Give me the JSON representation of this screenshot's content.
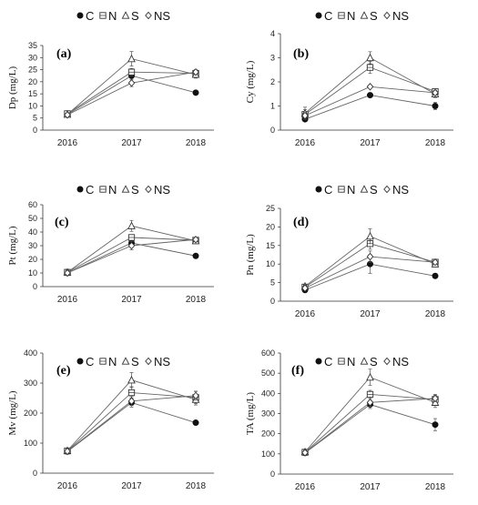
{
  "figure": {
    "legend": [
      {
        "name": "C",
        "marker": "filled-circle"
      },
      {
        "name": "N",
        "marker": "open-square"
      },
      {
        "name": "S",
        "marker": "open-triangle"
      },
      {
        "name": "NS",
        "marker": "open-diamond"
      }
    ],
    "colors": {
      "line": "#666666",
      "marker_fill": "#111111",
      "axis": "#333333"
    }
  },
  "chart_data": [
    {
      "type": "line",
      "panel_label": "(a)",
      "ylabel": "Dp (mg/L)",
      "categories": [
        "2016",
        "2017",
        "2018"
      ],
      "ylim": [
        0,
        35
      ],
      "yticks": [
        0,
        5,
        10,
        15,
        20,
        25,
        30,
        35
      ],
      "series": [
        {
          "name": "C",
          "values": [
            6.5,
            22.5,
            15.5
          ],
          "errors": [
            0.5,
            1.5,
            0.5
          ]
        },
        {
          "name": "N",
          "values": [
            6.8,
            24.0,
            23.5
          ],
          "errors": [
            0.5,
            1.5,
            1.2
          ]
        },
        {
          "name": "S",
          "values": [
            6.5,
            29.5,
            23.0
          ],
          "errors": [
            0.5,
            3.0,
            1.5
          ]
        },
        {
          "name": "NS",
          "values": [
            6.3,
            19.5,
            24.0
          ],
          "errors": [
            0.5,
            1.5,
            1.0
          ]
        }
      ]
    },
    {
      "type": "line",
      "panel_label": "(b)",
      "ylabel": "Cy (mg/L)",
      "categories": [
        "2016",
        "2017",
        "2018"
      ],
      "ylim": [
        0,
        4
      ],
      "yticks": [
        0,
        1,
        2,
        3,
        4
      ],
      "series": [
        {
          "name": "C",
          "values": [
            0.45,
            1.45,
            1.0
          ],
          "errors": [
            0.05,
            0.1,
            0.15
          ]
        },
        {
          "name": "N",
          "values": [
            0.65,
            2.6,
            1.6
          ],
          "errors": [
            0.2,
            0.25,
            0.1
          ]
        },
        {
          "name": "S",
          "values": [
            0.7,
            3.0,
            1.5
          ],
          "errors": [
            0.25,
            0.25,
            0.15
          ]
        },
        {
          "name": "NS",
          "values": [
            0.6,
            1.8,
            1.55
          ],
          "errors": [
            0.1,
            0.05,
            0.1
          ]
        }
      ]
    },
    {
      "type": "line",
      "panel_label": "(c)",
      "ylabel": "Pt (mg/L)",
      "categories": [
        "2016",
        "2017",
        "2018"
      ],
      "ylim": [
        0,
        60
      ],
      "yticks": [
        0,
        10,
        20,
        30,
        40,
        50,
        60
      ],
      "series": [
        {
          "name": "C",
          "values": [
            10,
            32,
            22.5
          ],
          "errors": [
            1,
            2,
            1
          ]
        },
        {
          "name": "N",
          "values": [
            10.5,
            36,
            34
          ],
          "errors": [
            1,
            2,
            2
          ]
        },
        {
          "name": "S",
          "values": [
            10.5,
            44.5,
            33.5
          ],
          "errors": [
            1.5,
            4,
            2
          ]
        },
        {
          "name": "NS",
          "values": [
            10,
            30,
            34.5
          ],
          "errors": [
            1,
            3,
            1.5
          ]
        }
      ]
    },
    {
      "type": "line",
      "panel_label": "(d)",
      "ylabel": "Pn (mg/L)",
      "categories": [
        "2016",
        "2017",
        "2018"
      ],
      "ylim": [
        0,
        25
      ],
      "yticks": [
        0,
        5,
        10,
        15,
        20,
        25
      ],
      "series": [
        {
          "name": "C",
          "values": [
            3,
            10,
            6.8
          ],
          "errors": [
            0.3,
            2.5,
            0.3
          ]
        },
        {
          "name": "N",
          "values": [
            3.8,
            15.5,
            10.5
          ],
          "errors": [
            0.4,
            1.5,
            0.5
          ]
        },
        {
          "name": "S",
          "values": [
            4,
            17.5,
            10
          ],
          "errors": [
            0.4,
            2,
            0.5
          ]
        },
        {
          "name": "NS",
          "values": [
            3.5,
            12,
            10.5
          ],
          "errors": [
            0.4,
            1.5,
            0.5
          ]
        }
      ]
    },
    {
      "type": "line",
      "panel_label": "(e)",
      "ylabel": "Mv (mg/L)",
      "categories": [
        "2016",
        "2017",
        "2018"
      ],
      "ylim": [
        0,
        400
      ],
      "yticks": [
        0,
        100,
        200,
        300,
        400
      ],
      "series": [
        {
          "name": "C",
          "values": [
            72,
            235,
            168
          ],
          "errors": [
            5,
            15,
            8
          ]
        },
        {
          "name": "N",
          "values": [
            74,
            268,
            252
          ],
          "errors": [
            5,
            20,
            20
          ]
        },
        {
          "name": "S",
          "values": [
            75,
            310,
            245
          ],
          "errors": [
            5,
            25,
            18
          ]
        },
        {
          "name": "NS",
          "values": [
            73,
            240,
            258
          ],
          "errors": [
            5,
            15,
            15
          ]
        }
      ]
    },
    {
      "type": "line",
      "panel_label": "(f)",
      "ylabel": "TA (mg/L)",
      "categories": [
        "2016",
        "2017",
        "2018"
      ],
      "ylim": [
        0,
        600
      ],
      "yticks": [
        0,
        100,
        200,
        300,
        400,
        500,
        600
      ],
      "series": [
        {
          "name": "C",
          "values": [
            105,
            345,
            245
          ],
          "errors": [
            8,
            20,
            30
          ]
        },
        {
          "name": "N",
          "values": [
            108,
            395,
            370
          ],
          "errors": [
            8,
            20,
            25
          ]
        },
        {
          "name": "S",
          "values": [
            110,
            480,
            355
          ],
          "errors": [
            10,
            40,
            25
          ]
        },
        {
          "name": "NS",
          "values": [
            106,
            355,
            375
          ],
          "errors": [
            8,
            20,
            15
          ]
        }
      ]
    }
  ]
}
